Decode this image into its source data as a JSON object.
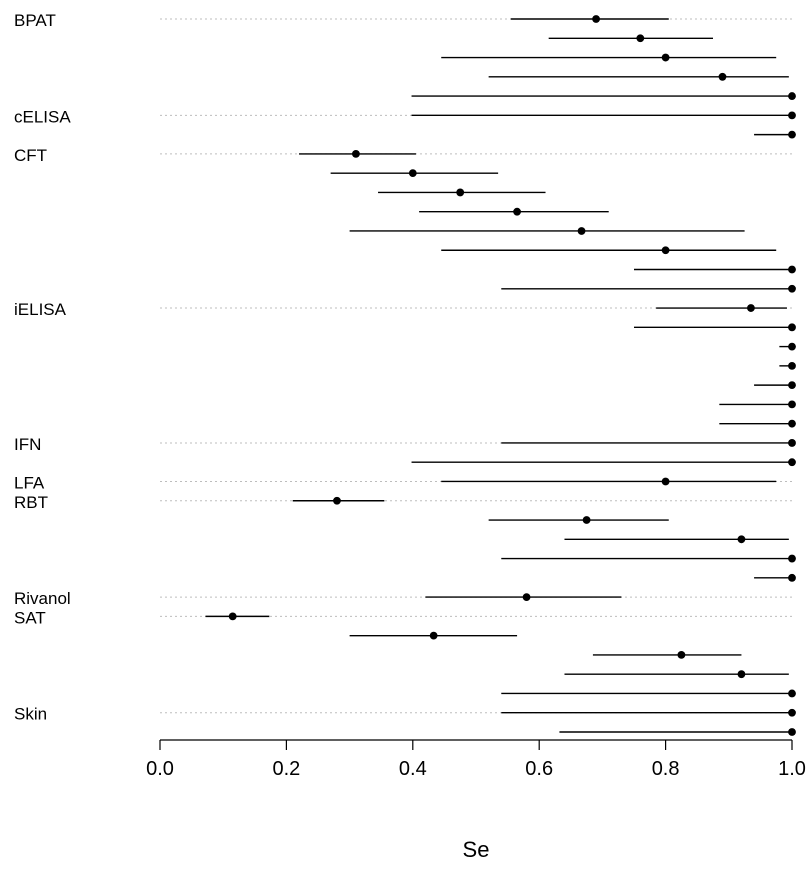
{
  "chart_data": {
    "type": "scatter",
    "xlabel": "Se",
    "ylabel": "",
    "xlim": [
      0,
      1
    ],
    "x_ticks": [
      "0.0",
      "0.2",
      "0.4",
      "0.6",
      "0.8",
      "1.0"
    ],
    "grid": "dotted line at the first row of each test group",
    "groups": [
      "BPAT",
      "cELISA",
      "CFT",
      "iELISA",
      "IFN",
      "LFA",
      "RBT",
      "Rivanol",
      "SAT",
      "Skin"
    ],
    "rows": [
      {
        "group": "BPAT",
        "se": 0.69,
        "lower": 0.555,
        "upper": 0.805
      },
      {
        "group": "BPAT",
        "se": 0.76,
        "lower": 0.615,
        "upper": 0.875
      },
      {
        "group": "BPAT",
        "se": 0.8,
        "lower": 0.445,
        "upper": 0.975
      },
      {
        "group": "BPAT",
        "se": 0.89,
        "lower": 0.52,
        "upper": 0.995
      },
      {
        "group": "BPAT",
        "se": 1.0,
        "lower": 0.398,
        "upper": 1.0
      },
      {
        "group": "cELISA",
        "se": 1.0,
        "lower": 0.398,
        "upper": 1.0
      },
      {
        "group": "cELISA",
        "se": 1.0,
        "lower": 0.94,
        "upper": 1.0
      },
      {
        "group": "CFT",
        "se": 0.31,
        "lower": 0.22,
        "upper": 0.405
      },
      {
        "group": "CFT",
        "se": 0.4,
        "lower": 0.27,
        "upper": 0.535
      },
      {
        "group": "CFT",
        "se": 0.475,
        "lower": 0.345,
        "upper": 0.61
      },
      {
        "group": "CFT",
        "se": 0.565,
        "lower": 0.41,
        "upper": 0.71
      },
      {
        "group": "CFT",
        "se": 0.667,
        "lower": 0.3,
        "upper": 0.925
      },
      {
        "group": "CFT",
        "se": 0.8,
        "lower": 0.445,
        "upper": 0.975
      },
      {
        "group": "CFT",
        "se": 1.0,
        "lower": 0.75,
        "upper": 1.0
      },
      {
        "group": "CFT",
        "se": 1.0,
        "lower": 0.54,
        "upper": 1.0
      },
      {
        "group": "iELISA",
        "se": 0.935,
        "lower": 0.785,
        "upper": 0.992
      },
      {
        "group": "iELISA",
        "se": 1.0,
        "lower": 0.75,
        "upper": 1.0
      },
      {
        "group": "iELISA",
        "se": 1.0,
        "lower": 0.98,
        "upper": 1.0
      },
      {
        "group": "iELISA",
        "se": 1.0,
        "lower": 0.98,
        "upper": 1.0
      },
      {
        "group": "iELISA",
        "se": 1.0,
        "lower": 0.94,
        "upper": 1.0
      },
      {
        "group": "iELISA",
        "se": 1.0,
        "lower": 0.885,
        "upper": 1.0
      },
      {
        "group": "iELISA",
        "se": 1.0,
        "lower": 0.885,
        "upper": 1.0
      },
      {
        "group": "IFN",
        "se": 1.0,
        "lower": 0.54,
        "upper": 1.0
      },
      {
        "group": "IFN",
        "se": 1.0,
        "lower": 0.398,
        "upper": 1.0
      },
      {
        "group": "LFA",
        "se": 0.8,
        "lower": 0.445,
        "upper": 0.975
      },
      {
        "group": "RBT",
        "se": 0.28,
        "lower": 0.21,
        "upper": 0.355
      },
      {
        "group": "RBT",
        "se": 0.675,
        "lower": 0.52,
        "upper": 0.805
      },
      {
        "group": "RBT",
        "se": 0.92,
        "lower": 0.64,
        "upper": 0.995
      },
      {
        "group": "RBT",
        "se": 1.0,
        "lower": 0.54,
        "upper": 1.0
      },
      {
        "group": "RBT",
        "se": 1.0,
        "lower": 0.94,
        "upper": 1.0
      },
      {
        "group": "Rivanol",
        "se": 0.58,
        "lower": 0.42,
        "upper": 0.73
      },
      {
        "group": "SAT",
        "se": 0.115,
        "lower": 0.072,
        "upper": 0.173
      },
      {
        "group": "SAT",
        "se": 0.433,
        "lower": 0.3,
        "upper": 0.565
      },
      {
        "group": "SAT",
        "se": 0.825,
        "lower": 0.685,
        "upper": 0.92
      },
      {
        "group": "SAT",
        "se": 0.92,
        "lower": 0.64,
        "upper": 0.995
      },
      {
        "group": "SAT",
        "se": 1.0,
        "lower": 0.54,
        "upper": 1.0
      },
      {
        "group": "Skin",
        "se": 1.0,
        "lower": 0.54,
        "upper": 1.0
      },
      {
        "group": "Skin",
        "se": 1.0,
        "lower": 0.632,
        "upper": 1.0
      }
    ]
  }
}
